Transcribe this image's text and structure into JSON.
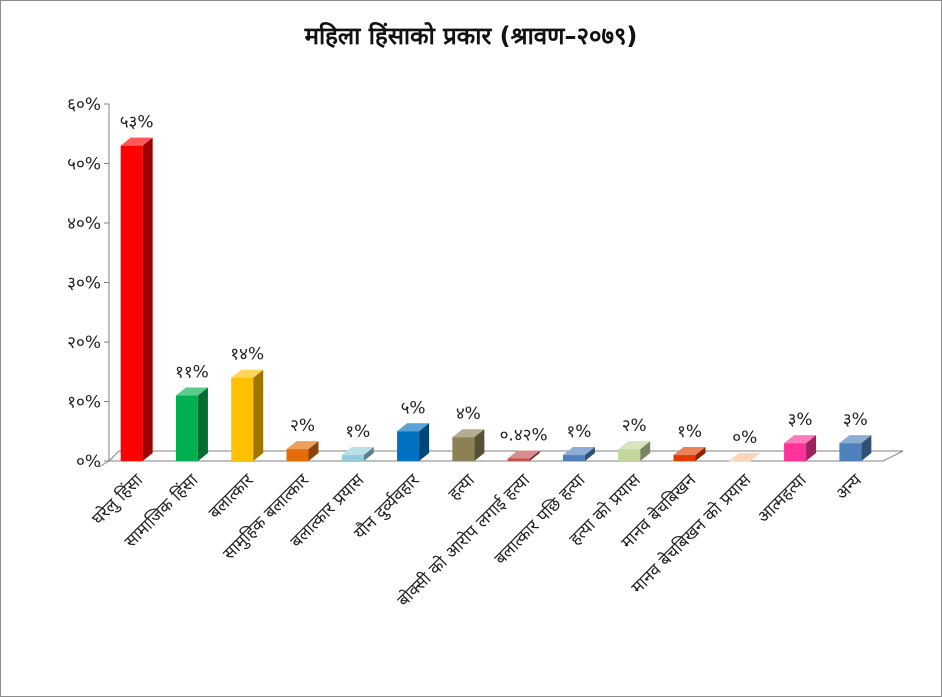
{
  "chart_data": {
    "type": "bar",
    "title": "महिला हिंसाको प्रकार (श्रावण–२०७९)",
    "xlabel": "",
    "ylabel": "",
    "ylim": [
      0,
      60
    ],
    "y_ticks": [
      0,
      10,
      20,
      30,
      40,
      50,
      60
    ],
    "y_tick_labels": [
      "०%",
      "१०%",
      "२०%",
      "३०%",
      "४०%",
      "५०%",
      "६०%"
    ],
    "grid": false,
    "legend": "none",
    "style": "3d-column",
    "categories": [
      "घरेलु हिंसा",
      "सामाजिक हिंसा",
      "बलात्कार",
      "सामुहिक बलात्कार",
      "बलात्कार प्रयास",
      "यौन दुर्व्यवहार",
      "हत्या",
      "बोक्सी को आरोप लगाई हत्या",
      "बलात्कार पछि हत्या",
      "हत्या को प्रयास",
      "मानव बेचबिखन",
      "मानव बेचबिखन को प्रयास",
      "आत्महत्या",
      "अन्य"
    ],
    "values": [
      53,
      11,
      14,
      2,
      1,
      5,
      4,
      0.42,
      1,
      2,
      1,
      0,
      3,
      3
    ],
    "data_labels": [
      "५३%",
      "११%",
      "१४%",
      "२%",
      "१%",
      "५%",
      "४%",
      "०.४२%",
      "१%",
      "२%",
      "१%",
      "०%",
      "३%",
      "३%"
    ],
    "colors": [
      "#ff0000",
      "#00b050",
      "#ffc000",
      "#e46c0a",
      "#93cddd",
      "#0070c0",
      "#8b8154",
      "#c0504d",
      "#4f81bd",
      "#c3d69b",
      "#e03c00",
      "#fac090",
      "#ff3399",
      "#4f81bd"
    ]
  }
}
